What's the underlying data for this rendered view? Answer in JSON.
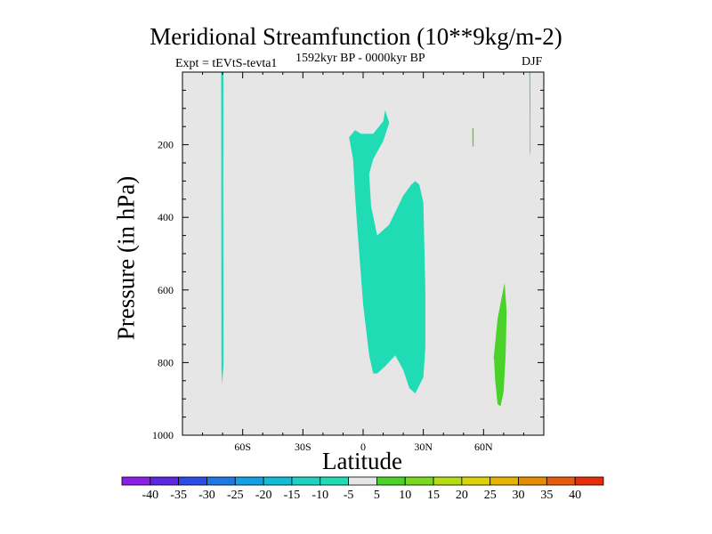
{
  "chart_data": {
    "type": "contour",
    "title": "Meridional Streamfunction (10**9kg/m-2)",
    "subtitle_left": "Expt = tEVtS-tevta1",
    "subtitle_center": "1592kyr BP - 0000kyr BP",
    "subtitle_right": "DJF",
    "xlabel": "Latitude",
    "ylabel": "Pressure (in hPa)",
    "xlim": [
      -90,
      90
    ],
    "ylim": [
      1000,
      0
    ],
    "x_ticks": [
      {
        "value": -60,
        "label": "60S"
      },
      {
        "value": -30,
        "label": "30S"
      },
      {
        "value": 0,
        "label": "0"
      },
      {
        "value": 30,
        "label": "30N"
      },
      {
        "value": 60,
        "label": "60N"
      }
    ],
    "y_ticks": [
      {
        "value": 200,
        "label": "200"
      },
      {
        "value": 400,
        "label": "400"
      },
      {
        "value": 600,
        "label": "600"
      },
      {
        "value": 800,
        "label": "800"
      },
      {
        "value": 1000,
        "label": "1000"
      }
    ],
    "background_color": "#e6e6e6",
    "colorbar": {
      "labels": [
        "-40",
        "-35",
        "-30",
        "-25",
        "-20",
        "-15",
        "-10",
        "-5",
        "5",
        "10",
        "15",
        "20",
        "25",
        "30",
        "35",
        "40"
      ],
      "colors": [
        "#8a1ee6",
        "#5a28e0",
        "#2d4be8",
        "#1e78e6",
        "#14a0e6",
        "#12bcd6",
        "#1ed2c3",
        "#20dcb4",
        "#e6e6e6",
        "#4ad22a",
        "#78d81e",
        "#b4dc14",
        "#dcd20a",
        "#e6b400",
        "#e68a00",
        "#e65a0a",
        "#e62d0a"
      ]
    },
    "regions": [
      {
        "name": "neg-5 south-polar strip",
        "level": "-5",
        "color": "#20dcb4",
        "lat": [
          -70.5,
          -69.6,
          -69.7,
          -69.5,
          -70.2,
          -70.6,
          -70.7
        ],
        "p": [
          0,
          0,
          320,
          800,
          860,
          820,
          0
        ]
      },
      {
        "name": "neg-5 tropical cell",
        "level": "-5",
        "color": "#20dcb4",
        "lat": [
          -7,
          -4,
          -1,
          5,
          10,
          11,
          13,
          10,
          5,
          3,
          4,
          7,
          13,
          20,
          24,
          26,
          28,
          30,
          31,
          31,
          30,
          26,
          23,
          20,
          16,
          11,
          7,
          5,
          3,
          0,
          -3,
          -4,
          -5,
          -7
        ],
        "p": [
          180,
          160,
          170,
          170,
          135,
          105,
          140,
          190,
          240,
          280,
          370,
          450,
          420,
          340,
          310,
          300,
          310,
          360,
          600,
          760,
          840,
          885,
          870,
          820,
          780,
          810,
          830,
          830,
          780,
          640,
          420,
          340,
          240,
          180
        ]
      },
      {
        "name": "neg-5 north-polar sliver",
        "level": "-5",
        "color": "#20dcb4",
        "lat": [
          82.8,
          83.3,
          83.4,
          83.1
        ],
        "p": [
          0,
          0,
          220,
          230
        ]
      },
      {
        "name": "pos-5 upper sliver",
        "level": "5",
        "color": "#4ad22a",
        "lat": [
          54.4,
          55.0,
          55.0,
          54.5
        ],
        "p": [
          155,
          155,
          205,
          205
        ]
      },
      {
        "name": "pos-5 lower cell",
        "level": "5",
        "color": "#4ad22a",
        "lat": [
          65,
          67,
          68.5,
          70.5,
          71.5,
          71,
          70,
          68.5,
          67,
          65.8,
          65.2
        ],
        "p": [
          790,
          680,
          635,
          580,
          660,
          780,
          880,
          920,
          915,
          850,
          790
        ]
      }
    ]
  }
}
